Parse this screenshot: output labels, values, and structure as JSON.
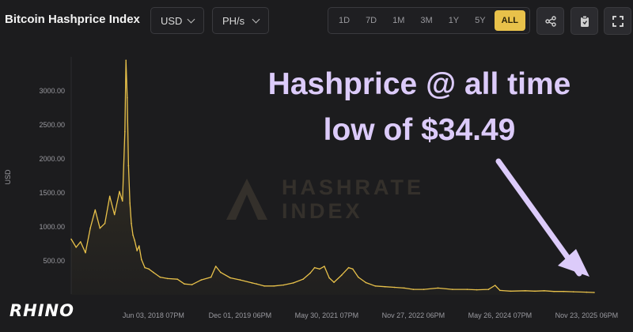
{
  "header": {
    "title": "Bitcoin Hashprice Index",
    "currency_select": "USD",
    "unit_select": "PH/s",
    "ranges": [
      "1D",
      "7D",
      "1M",
      "3M",
      "1Y",
      "5Y",
      "ALL"
    ],
    "active_range": "ALL",
    "actions": [
      "share-icon",
      "clipboard-icon",
      "fullscreen-icon"
    ]
  },
  "annotation": {
    "line1": "Hashprice @ all time",
    "line2": "low of $34.49"
  },
  "watermark": {
    "line1": "HASHRATE",
    "line2": "INDEX"
  },
  "logo": "RHINO",
  "colors": {
    "background": "#1c1c1e",
    "series": "#e8c14a",
    "annotation": "#dccbfa",
    "active_button": "#e8c14a"
  },
  "chart_data": {
    "type": "line",
    "ylabel": "USD",
    "ylim": [
      0,
      3500
    ],
    "yticks": [
      500,
      1000,
      1500,
      2000,
      2500,
      3000
    ],
    "ytick_labels": [
      "500.00",
      "1000.00",
      "1500.00",
      "2000.00",
      "2500.00",
      "3000.00"
    ],
    "xlim": [
      "2017-01-01",
      "2026-01-15"
    ],
    "xticks": [
      "2018-06-03",
      "2019-12-01",
      "2021-05-30",
      "2022-11-27",
      "2024-05-26",
      "2025-11-23"
    ],
    "xtick_labels": [
      "Jun 03, 2018 07PM",
      "Dec 01, 2019 06PM",
      "May 30, 2021 07PM",
      "Nov 27, 2022 06PM",
      "May 26, 2024 07PM",
      "Nov 23, 2025 06PM"
    ],
    "grid": false,
    "series": [
      {
        "x": [
          "2017-01-01",
          "2017-02-01",
          "2017-03-01",
          "2017-04-01",
          "2017-05-01",
          "2017-06-01",
          "2017-07-01",
          "2017-08-01",
          "2017-09-01",
          "2017-10-01",
          "2017-11-01",
          "2017-11-20",
          "2017-12-05",
          "2017-12-12",
          "2017-12-20",
          "2017-12-28",
          "2018-01-06",
          "2018-01-15",
          "2018-01-25",
          "2018-02-05",
          "2018-02-20",
          "2018-03-05",
          "2018-03-20",
          "2018-04-10",
          "2018-05-05",
          "2018-06-03",
          "2018-07-15",
          "2018-09-01",
          "2018-11-01",
          "2018-12-15",
          "2019-02-01",
          "2019-04-01",
          "2019-06-01",
          "2019-07-01",
          "2019-08-01",
          "2019-10-01",
          "2019-12-01",
          "2020-02-15",
          "2020-03-15",
          "2020-05-01",
          "2020-07-01",
          "2020-09-01",
          "2020-11-01",
          "2021-01-01",
          "2021-02-15",
          "2021-03-15",
          "2021-04-15",
          "2021-05-15",
          "2021-06-15",
          "2021-07-15",
          "2021-09-01",
          "2021-10-15",
          "2021-11-10",
          "2021-12-15",
          "2022-02-01",
          "2022-04-01",
          "2022-06-01",
          "2022-08-01",
          "2022-10-01",
          "2022-11-27",
          "2023-02-01",
          "2023-05-01",
          "2023-08-01",
          "2023-11-01",
          "2024-01-01",
          "2024-03-15",
          "2024-04-25",
          "2024-05-26",
          "2024-08-01",
          "2024-11-01",
          "2025-01-01",
          "2025-03-01",
          "2025-05-01",
          "2025-07-01",
          "2025-09-01",
          "2025-11-23",
          "2026-01-10"
        ],
        "y": [
          820,
          700,
          780,
          620,
          980,
          1250,
          980,
          1050,
          1450,
          1180,
          1520,
          1380,
          2400,
          3450,
          2900,
          1900,
          1350,
          1050,
          880,
          800,
          650,
          720,
          520,
          400,
          380,
          330,
          260,
          240,
          230,
          160,
          150,
          220,
          260,
          420,
          330,
          250,
          220,
          175,
          160,
          130,
          130,
          145,
          175,
          230,
          320,
          400,
          380,
          420,
          250,
          185,
          290,
          400,
          380,
          260,
          180,
          130,
          120,
          110,
          100,
          80,
          80,
          100,
          80,
          80,
          75,
          80,
          140,
          65,
          55,
          60,
          55,
          60,
          50,
          50,
          45,
          40,
          34.49
        ]
      }
    ]
  }
}
